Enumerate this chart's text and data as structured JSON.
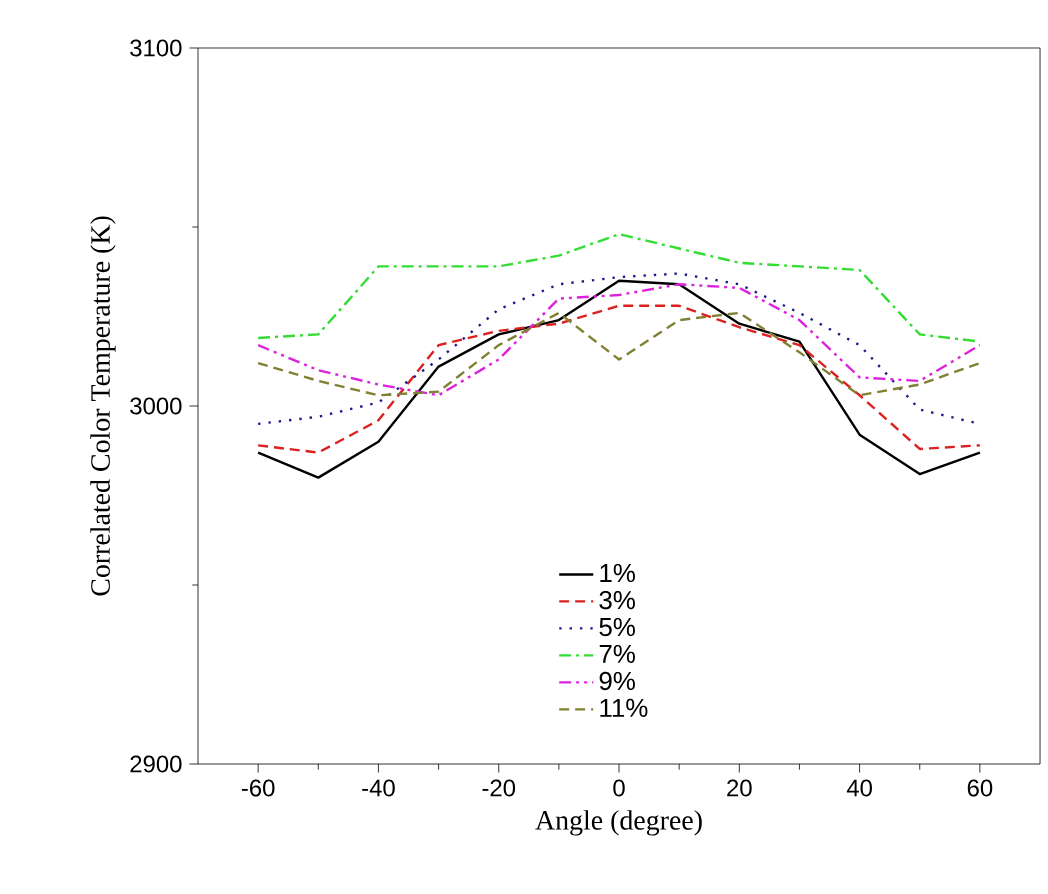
{
  "chart_data": {
    "type": "line",
    "xlabel": "Angle (degree)",
    "ylabel": "Correlated Color Temperature (K)",
    "x": [
      -60,
      -50,
      -40,
      -30,
      -20,
      -10,
      0,
      10,
      20,
      30,
      40,
      50,
      60
    ],
    "xlim": [
      -70,
      70
    ],
    "xticks": [
      -60,
      -40,
      -20,
      0,
      20,
      40,
      60
    ],
    "ylim": [
      2900,
      3100
    ],
    "yticks": [
      2900,
      3000,
      3100
    ],
    "legend": "bottom",
    "grid": false,
    "series": [
      {
        "name": "1%",
        "color": "#000000",
        "line_style": "solid",
        "values": [
          2987,
          2980,
          2990,
          3011,
          3020,
          3024,
          3035,
          3034,
          3023,
          3018,
          2992,
          2981,
          2987
        ]
      },
      {
        "name": "3%",
        "color": "#dd2020",
        "line_style": "dashed",
        "values": [
          2989,
          2987,
          2996,
          3017,
          3021,
          3023,
          3028,
          3028,
          3022,
          3017,
          3003,
          2988,
          2989
        ]
      },
      {
        "name": "5%",
        "color": "#1c1c8c",
        "line_style": "dotted",
        "values": [
          2995,
          2997,
          3001,
          3013,
          3027,
          3034,
          3036,
          3037,
          3034,
          3026,
          3017,
          2999,
          2995
        ]
      },
      {
        "name": "7%",
        "color": "#33dd33",
        "line_style": "dashdot",
        "values": [
          3019,
          3020,
          3039,
          3039,
          3039,
          3042,
          3048,
          3044,
          3040,
          3039,
          3038,
          3020,
          3018
        ]
      },
      {
        "name": "9%",
        "color": "#dd22dd",
        "line_style": "dashdotdot",
        "values": [
          3017,
          3010,
          3006,
          3003,
          3013,
          3030,
          3031,
          3034,
          3033,
          3024,
          3008,
          3007,
          3017
        ]
      },
      {
        "name": "11%",
        "color": "#808033",
        "line_style": "dashed",
        "values": [
          3012,
          3007,
          3003,
          3004,
          3017,
          3026,
          3013,
          3024,
          3026,
          3015,
          3003,
          3006,
          3012
        ]
      }
    ]
  }
}
